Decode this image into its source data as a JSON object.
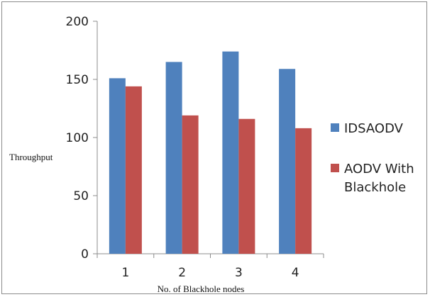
{
  "chart_data": {
    "type": "bar",
    "categories": [
      "1",
      "2",
      "3",
      "4"
    ],
    "series": [
      {
        "name": "IDSAODV",
        "values": [
          151,
          165,
          174,
          159
        ],
        "color": "#4f81bd"
      },
      {
        "name": "AODV With Blackhole",
        "name_lines": [
          "AODV With",
          "Blackhole"
        ],
        "values": [
          144,
          119,
          116,
          108
        ],
        "color": "#c0504d"
      }
    ],
    "xlabel": "No. of Blackhole nodes",
    "ylabel": "Throughput",
    "ylim": [
      0,
      200
    ],
    "yticks": [
      "0",
      "50",
      "100",
      "150",
      "200"
    ],
    "grid": false,
    "legend": "right"
  }
}
